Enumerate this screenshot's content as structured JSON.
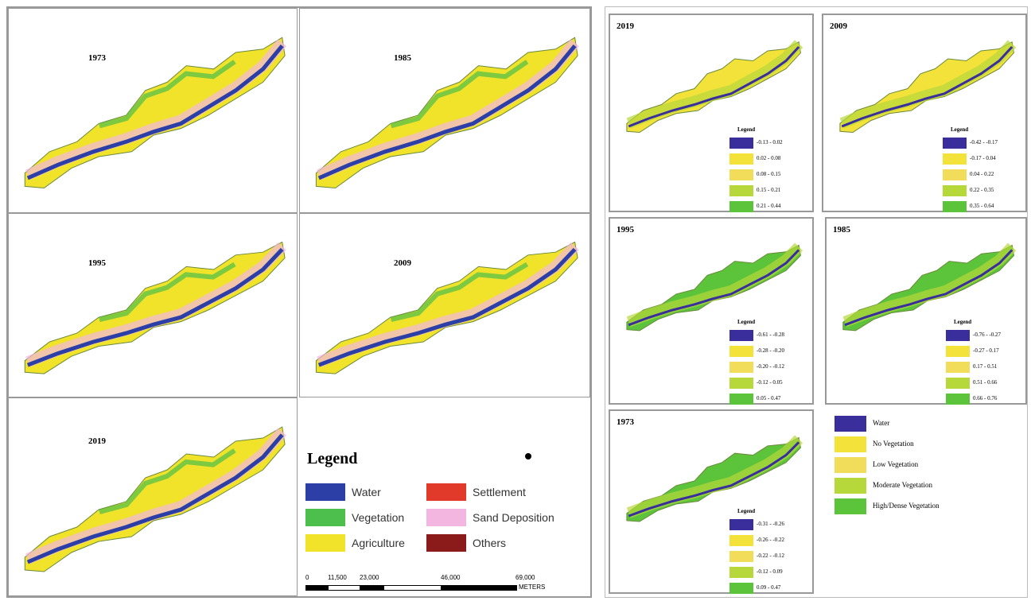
{
  "lulc": {
    "maps": [
      {
        "year": "1973"
      },
      {
        "year": "1985"
      },
      {
        "year": "1995"
      },
      {
        "year": "2009"
      },
      {
        "year": "2019"
      }
    ],
    "legend": {
      "title": "Legend",
      "items": [
        {
          "label": "Water",
          "color": "#2b3fa6"
        },
        {
          "label": "Settlement",
          "color": "#e23a2a"
        },
        {
          "label": "Vegetation",
          "color": "#4cbf4c"
        },
        {
          "label": "Sand Deposition",
          "color": "#f2b6e0"
        },
        {
          "label": "Agriculture",
          "color": "#f0e32a"
        },
        {
          "label": "Others",
          "color": "#8b1a1a"
        }
      ]
    },
    "scale": {
      "ticks": [
        "0",
        "11,500",
        "23,000",
        "46,000",
        "69,000"
      ],
      "unit": "METERS"
    }
  },
  "ndvi": {
    "maps": [
      {
        "year": "2019",
        "legend_title": "Legend",
        "ranges": [
          "-0.13 - 0.02",
          "0.02 - 0.08",
          "0.08 - 0.15",
          "0.15 - 0.21",
          "0.21 - 0.44"
        ]
      },
      {
        "year": "2009",
        "legend_title": "Legend",
        "ranges": [
          "-0.42 - -0.17",
          "-0.17 - 0.04",
          "0.04 - 0.22",
          "0.22 - 0.35",
          "0.35 - 0.64"
        ]
      },
      {
        "year": "1995",
        "legend_title": "Legend",
        "ranges": [
          "-0.61 - -0.28",
          "-0.28 - -0.20",
          "-0.20 - -0.12",
          "-0.12 - 0.05",
          "0.05 - 0.47"
        ]
      },
      {
        "year": "1985",
        "legend_title": "Legend",
        "ranges": [
          "-0.76 - -0.27",
          "-0.27 - 0.17",
          "0.17 - 0.51",
          "0.51 - 0.66",
          "0.66 - 0.76"
        ]
      },
      {
        "year": "1973",
        "legend_title": "Legend",
        "ranges": [
          "-0.31 - -0.26",
          "-0.26 - -0.22",
          "-0.22 - -0.12",
          "-0.12 - 0.09",
          "0.09 - 0.47"
        ]
      }
    ],
    "classes": [
      {
        "label": "Water",
        "color": "#3a2d9c"
      },
      {
        "label": "No Vegetation",
        "color": "#f2e23a"
      },
      {
        "label": "Low Vegetation",
        "color": "#f2dd5a"
      },
      {
        "label": "Moderate Vegetation",
        "color": "#b7d83a"
      },
      {
        "label": "High/Dense Vegetation",
        "color": "#5cc43a"
      }
    ]
  }
}
